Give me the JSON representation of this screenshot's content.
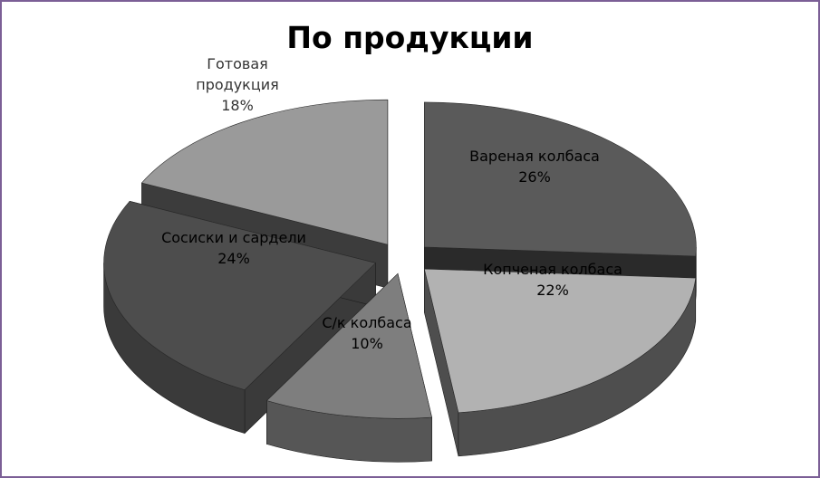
{
  "chart_data": {
    "type": "pie",
    "style": "3d-exploded",
    "title": "По продукции",
    "slices": [
      {
        "label": "Вареная колбаса",
        "percent": "26%",
        "value": 26,
        "top_color": "#5a5a5a",
        "side_color": "#2a2a2a"
      },
      {
        "label": "Копченая колбаса",
        "percent": "22%",
        "value": 22,
        "top_color": "#b2b2b2",
        "side_color": "#4e4e4e"
      },
      {
        "label": "С/к колбаса",
        "percent": "10%",
        "value": 10,
        "top_color": "#7e7e7e",
        "side_color": "#565656"
      },
      {
        "label": "Сосиски и сардели",
        "percent": "24%",
        "value": 24,
        "top_color": "#4d4d4d",
        "side_color": "#3a3a3a"
      },
      {
        "label": "Готовая продукция",
        "percent": "18%",
        "value": 18,
        "top_color": "#9a9a9a",
        "side_color": "#3c3c3c"
      }
    ],
    "legend": "none",
    "frame_color": "#7b5f96"
  }
}
